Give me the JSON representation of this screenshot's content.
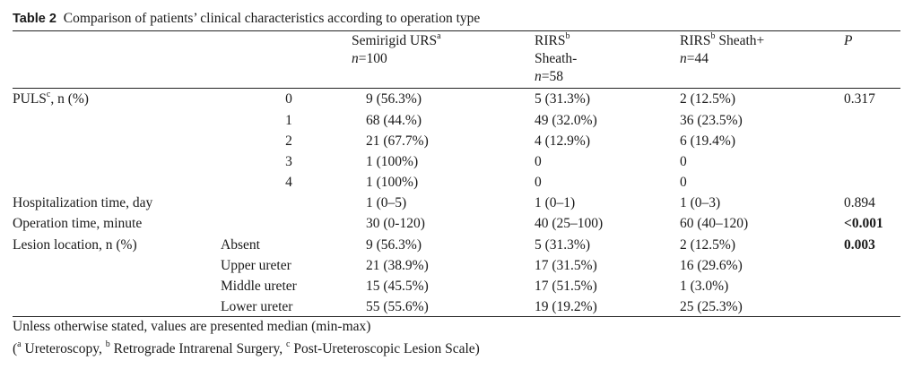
{
  "caption": {
    "label": "Table 2",
    "text": "Comparison of patients’ clinical characteristics according to operation type"
  },
  "header": {
    "col1_line1": "Semirigid URS",
    "col1_sup": "a",
    "col1_n_var": "n",
    "col1_n_val": "=100",
    "col2_line1": "RIRS",
    "col2_sup": "b",
    "col2_line2": "Sheath-",
    "col2_n_var": "n",
    "col2_n_val": "=58",
    "col3_line1": "RIRS",
    "col3_sup": "b",
    "col3_line1b": " Sheath+",
    "col3_n_var": "n",
    "col3_n_val": "=44",
    "p": "P"
  },
  "puls": {
    "label": "PULS",
    "sup": "c",
    "label_rest": ", n (%)",
    "p": "0.317",
    "rows": [
      {
        "grade": "0",
        "c1": "9 (56.3%)",
        "c2": "5 (31.3%)",
        "c3": "2 (12.5%)"
      },
      {
        "grade": "1",
        "c1": "68 (44.%)",
        "c2": "49 (32.0%)",
        "c3": "36 (23.5%)"
      },
      {
        "grade": "2",
        "c1": "21 (67.7%)",
        "c2": "4 (12.9%)",
        "c3": "6 (19.4%)"
      },
      {
        "grade": "3",
        "c1": "1 (100%)",
        "c2": "0",
        "c3": "0"
      },
      {
        "grade": "4",
        "c1": "1 (100%)",
        "c2": "0",
        "c3": "0"
      }
    ]
  },
  "hosp": {
    "label": "Hospitalization time, day",
    "c1": "1 (0–5)",
    "c2": "1 (0–1)",
    "c3": "1 (0–3)",
    "p": "0.894"
  },
  "optime": {
    "label": "Operation time, minute",
    "c1": "30 (0-120)",
    "c2": "40 (25–100)",
    "c3": "60 (40–120)",
    "p": "<0.001"
  },
  "lesion": {
    "label": "Lesion location, n (%)",
    "p": "0.003",
    "rows": [
      {
        "sub": "Absent",
        "c1": "9 (56.3%)",
        "c2": "5 (31.3%)",
        "c3": "2 (12.5%)"
      },
      {
        "sub": "Upper ureter",
        "c1": "21 (38.9%)",
        "c2": "17 (31.5%)",
        "c3": "16 (29.6%)"
      },
      {
        "sub": "Middle ureter",
        "c1": "15 (45.5%)",
        "c2": "17 (51.5%)",
        "c3": "1 (3.0%)"
      },
      {
        "sub": "Lower ureter",
        "c1": "55 (55.6%)",
        "c2": "19 (19.2%)",
        "c3": "25 (25.3%)"
      }
    ]
  },
  "footnotes": {
    "line1": "Unless otherwise stated, values are presented median (min-max)",
    "open": "(",
    "a": "a",
    "a_text": " Ureteroscopy, ",
    "b": "b",
    "b_text": " Retrograde Intrarenal Surgery, ",
    "c": "c",
    "c_text": " Post-Ureteroscopic Lesion Scale)"
  }
}
